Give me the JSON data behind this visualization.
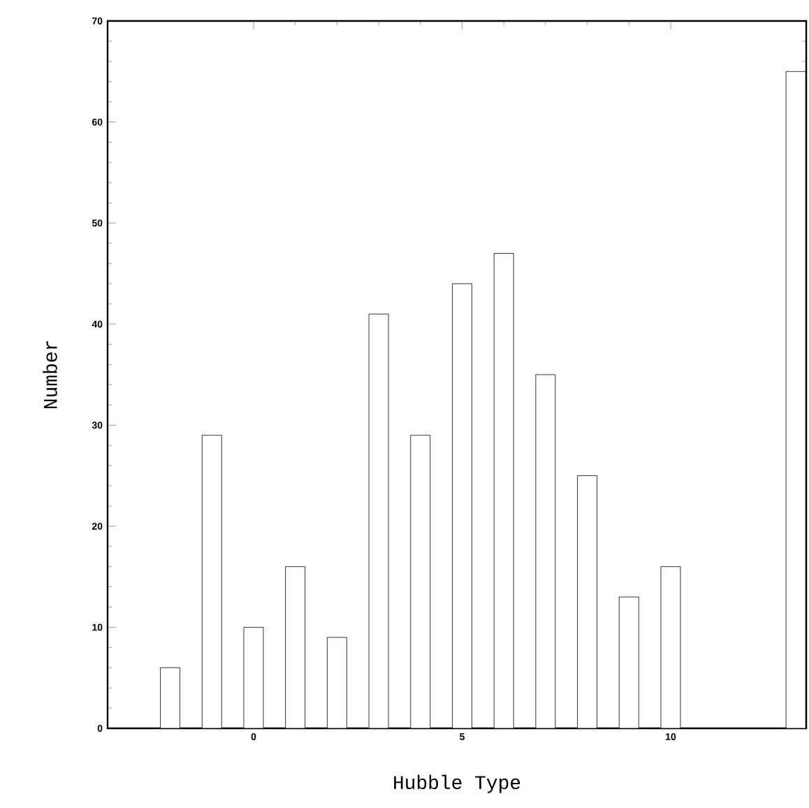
{
  "chart_data": {
    "type": "bar",
    "xlabel": "Hubble Type",
    "ylabel": "Number",
    "x": [
      -2,
      -1,
      0,
      1,
      2,
      3,
      4,
      5,
      6,
      7,
      8,
      9,
      10,
      13
    ],
    "values": [
      6,
      29,
      10,
      16,
      9,
      41,
      29,
      44,
      47,
      35,
      25,
      13,
      16,
      65
    ],
    "color": "#ffffff",
    "xlim": [
      -3.5,
      13.25
    ],
    "ylim": [
      0,
      70
    ],
    "xticks": [
      0,
      5,
      10
    ],
    "yticks": [
      0,
      10,
      20,
      30,
      40,
      50,
      60,
      70
    ]
  }
}
